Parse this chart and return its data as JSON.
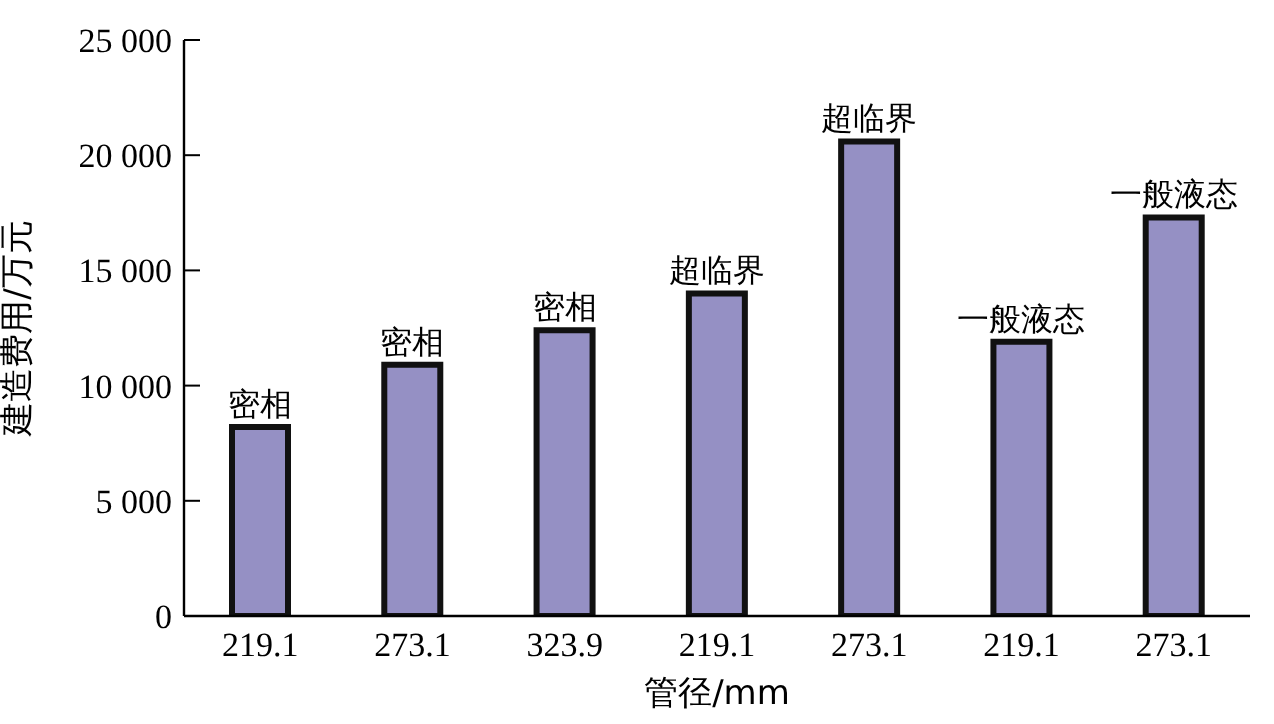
{
  "chart_data": {
    "type": "bar",
    "xlabel": "管径/mm",
    "ylabel": "建造费用/万元",
    "categories": [
      "219.1",
      "273.1",
      "323.9",
      "219.1",
      "273.1",
      "219.1",
      "273.1"
    ],
    "values": [
      8200,
      10900,
      12400,
      14000,
      20600,
      11900,
      17300
    ],
    "value_labels": [
      "密相",
      "密相",
      "密相",
      "超临界",
      "超临界",
      "一般液态",
      "一般液态"
    ],
    "color": "#9590c4",
    "ylim": [
      0,
      25000
    ],
    "yticks": [
      0,
      {
        "value": 5000,
        "label": "5 000"
      },
      {
        "value": 10000,
        "label": "10 000"
      },
      {
        "value": 15000,
        "label": "15 000"
      },
      {
        "value": 20000,
        "label": "20 000"
      },
      {
        "value": 25000,
        "label": "25 000"
      }
    ],
    "grid": false
  }
}
